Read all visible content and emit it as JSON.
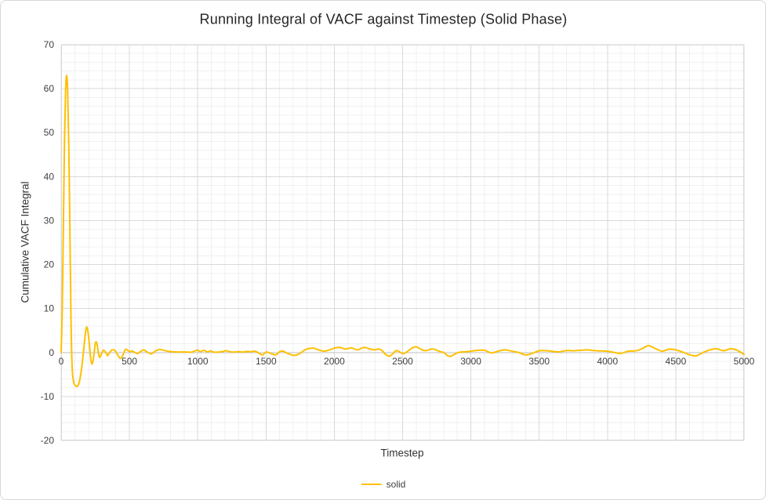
{
  "chart_data": {
    "type": "line",
    "title": "Running Integral of VACF against Timestep (Solid Phase)",
    "xlabel": "Timestep",
    "ylabel": "Cumulative VACF Integral",
    "xlim": [
      0,
      5000
    ],
    "ylim": [
      -20,
      70
    ],
    "x_major_step": 500,
    "x_minor_step": 100,
    "y_major_step": 10,
    "y_minor_step": 2,
    "x_ticks": [
      0,
      500,
      1000,
      1500,
      2000,
      2500,
      3000,
      3500,
      4000,
      4500,
      5000
    ],
    "y_ticks": [
      70,
      60,
      50,
      40,
      30,
      20,
      10,
      0,
      -10,
      -20
    ],
    "grid": "major+minor",
    "legend_position": "bottom-center",
    "series": [
      {
        "name": "solid",
        "color": "#FFC000",
        "points": [
          [
            0,
            0
          ],
          [
            8,
            10
          ],
          [
            16,
            28
          ],
          [
            24,
            47
          ],
          [
            32,
            59
          ],
          [
            40,
            63
          ],
          [
            48,
            59
          ],
          [
            56,
            47
          ],
          [
            64,
            28
          ],
          [
            72,
            8
          ],
          [
            80,
            -3
          ],
          [
            90,
            -6.5
          ],
          [
            100,
            -7.4
          ],
          [
            112,
            -7.7
          ],
          [
            124,
            -7.5
          ],
          [
            136,
            -6.3
          ],
          [
            148,
            -4
          ],
          [
            158,
            -1.5
          ],
          [
            168,
            1.5
          ],
          [
            178,
            4.5
          ],
          [
            186,
            5.8
          ],
          [
            196,
            4.8
          ],
          [
            206,
            2
          ],
          [
            216,
            -1.2
          ],
          [
            224,
            -2.6
          ],
          [
            234,
            -1.8
          ],
          [
            244,
            0.5
          ],
          [
            252,
            2.3
          ],
          [
            262,
            2
          ],
          [
            275,
            -0.5
          ],
          [
            283,
            -1.1
          ],
          [
            295,
            -0.3
          ],
          [
            308,
            0.5
          ],
          [
            318,
            0.3
          ],
          [
            330,
            -0.2
          ],
          [
            340,
            -0.7
          ],
          [
            355,
            0
          ],
          [
            370,
            0.55
          ],
          [
            385,
            0.6
          ],
          [
            400,
            0.2
          ],
          [
            415,
            -0.6
          ],
          [
            435,
            -1.35
          ],
          [
            455,
            -0.4
          ],
          [
            472,
            0.75
          ],
          [
            490,
            0.4
          ],
          [
            505,
            0.2
          ],
          [
            520,
            0.35
          ],
          [
            540,
            0
          ],
          [
            560,
            -0.25
          ],
          [
            580,
            0.2
          ],
          [
            605,
            0.6
          ],
          [
            630,
            0.1
          ],
          [
            660,
            -0.3
          ],
          [
            680,
            0.1
          ],
          [
            700,
            0.5
          ],
          [
            720,
            0.7
          ],
          [
            745,
            0.55
          ],
          [
            770,
            0.35
          ],
          [
            800,
            0.2
          ],
          [
            830,
            0.15
          ],
          [
            860,
            0.1
          ],
          [
            890,
            0.15
          ],
          [
            920,
            0.1
          ],
          [
            950,
            0.05
          ],
          [
            975,
            0.3
          ],
          [
            1000,
            0.55
          ],
          [
            1020,
            0.2
          ],
          [
            1045,
            0.5
          ],
          [
            1070,
            0.15
          ],
          [
            1095,
            0.35
          ],
          [
            1120,
            0.05
          ],
          [
            1150,
            0.1
          ],
          [
            1180,
            0.2
          ],
          [
            1210,
            0.4
          ],
          [
            1240,
            0.15
          ],
          [
            1270,
            0.1
          ],
          [
            1300,
            0.2
          ],
          [
            1330,
            0.1
          ],
          [
            1360,
            0.25
          ],
          [
            1390,
            0.15
          ],
          [
            1420,
            0.3
          ],
          [
            1450,
            -0.2
          ],
          [
            1475,
            -0.55
          ],
          [
            1500,
            0.1
          ],
          [
            1525,
            -0.1
          ],
          [
            1550,
            -0.4
          ],
          [
            1575,
            -0.5
          ],
          [
            1600,
            0.2
          ],
          [
            1625,
            0.3
          ],
          [
            1650,
            -0.1
          ],
          [
            1675,
            -0.4
          ],
          [
            1700,
            -0.65
          ],
          [
            1725,
            -0.55
          ],
          [
            1750,
            -0.2
          ],
          [
            1775,
            0.4
          ],
          [
            1800,
            0.8
          ],
          [
            1825,
            0.95
          ],
          [
            1850,
            1
          ],
          [
            1875,
            0.7
          ],
          [
            1900,
            0.45
          ],
          [
            1925,
            0.3
          ],
          [
            1950,
            0.45
          ],
          [
            1975,
            0.7
          ],
          [
            2000,
            1
          ],
          [
            2025,
            1.15
          ],
          [
            2050,
            1.1
          ],
          [
            2075,
            0.8
          ],
          [
            2100,
            0.9
          ],
          [
            2125,
            1.05
          ],
          [
            2150,
            0.8
          ],
          [
            2175,
            0.6
          ],
          [
            2200,
            1
          ],
          [
            2225,
            1.15
          ],
          [
            2250,
            0.9
          ],
          [
            2275,
            0.7
          ],
          [
            2300,
            0.6
          ],
          [
            2325,
            0.8
          ],
          [
            2350,
            0.4
          ],
          [
            2375,
            -0.4
          ],
          [
            2400,
            -0.85
          ],
          [
            2425,
            -0.4
          ],
          [
            2450,
            0.4
          ],
          [
            2475,
            0.2
          ],
          [
            2500,
            -0.25
          ],
          [
            2525,
            0
          ],
          [
            2550,
            0.6
          ],
          [
            2575,
            1.1
          ],
          [
            2600,
            1.3
          ],
          [
            2625,
            0.9
          ],
          [
            2650,
            0.5
          ],
          [
            2675,
            0.45
          ],
          [
            2700,
            0.7
          ],
          [
            2725,
            0.8
          ],
          [
            2750,
            0.5
          ],
          [
            2775,
            0.2
          ],
          [
            2800,
            0
          ],
          [
            2825,
            -0.6
          ],
          [
            2850,
            -0.9
          ],
          [
            2875,
            -0.5
          ],
          [
            2900,
            -0.1
          ],
          [
            2925,
            0.1
          ],
          [
            2950,
            0.15
          ],
          [
            2975,
            0.2
          ],
          [
            3000,
            0.3
          ],
          [
            3050,
            0.5
          ],
          [
            3100,
            0.5
          ],
          [
            3150,
            -0.1
          ],
          [
            3200,
            0.3
          ],
          [
            3250,
            0.6
          ],
          [
            3300,
            0.3
          ],
          [
            3350,
            0
          ],
          [
            3400,
            -0.55
          ],
          [
            3450,
            -0.2
          ],
          [
            3500,
            0.4
          ],
          [
            3550,
            0.4
          ],
          [
            3600,
            0.25
          ],
          [
            3650,
            0.15
          ],
          [
            3700,
            0.45
          ],
          [
            3750,
            0.4
          ],
          [
            3800,
            0.5
          ],
          [
            3850,
            0.6
          ],
          [
            3900,
            0.45
          ],
          [
            3950,
            0.35
          ],
          [
            4000,
            0.3
          ],
          [
            4050,
            0
          ],
          [
            4100,
            -0.2
          ],
          [
            4150,
            0.3
          ],
          [
            4200,
            0.35
          ],
          [
            4250,
            0.8
          ],
          [
            4300,
            1.55
          ],
          [
            4350,
            0.9
          ],
          [
            4400,
            0.3
          ],
          [
            4450,
            0.75
          ],
          [
            4500,
            0.6
          ],
          [
            4550,
            0.1
          ],
          [
            4600,
            -0.5
          ],
          [
            4650,
            -0.75
          ],
          [
            4700,
            0
          ],
          [
            4750,
            0.6
          ],
          [
            4800,
            0.85
          ],
          [
            4850,
            0.4
          ],
          [
            4900,
            0.85
          ],
          [
            4950,
            0.5
          ],
          [
            5000,
            -0.45
          ]
        ]
      }
    ]
  },
  "colors": {
    "series": "#FFC000",
    "grid_major": "#D9D9D9",
    "grid_minor": "#F0F0F0",
    "axis_line": "#BFBFBF",
    "plot_border": "#D9D9D9",
    "tick_text": "#404040",
    "title_text": "#262626",
    "chart_border": "#D7D7D7",
    "background": "#FFFFFF"
  }
}
